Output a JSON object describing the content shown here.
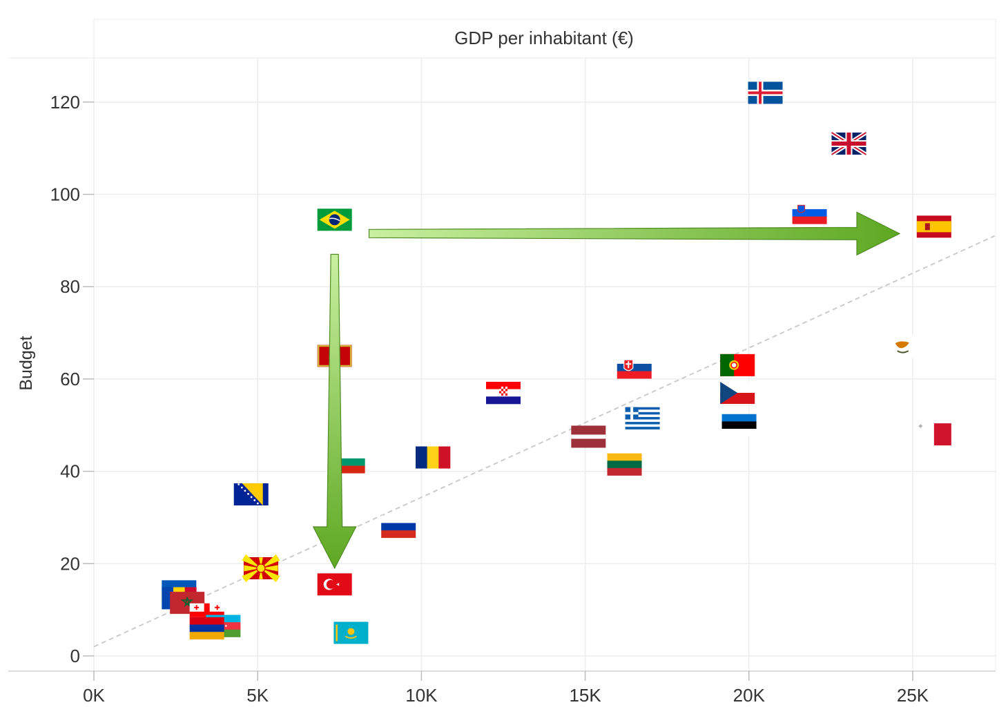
{
  "chart_data": {
    "type": "scatter",
    "title": "GDP per inhabitant (€)",
    "xlabel": "",
    "ylabel": "Budget",
    "xlim": [
      0,
      27500
    ],
    "ylim": [
      -3,
      130
    ],
    "x_ticks": [
      {
        "value": 0,
        "label": "0K"
      },
      {
        "value": 5000,
        "label": "5K"
      },
      {
        "value": 10000,
        "label": "10K"
      },
      {
        "value": 15000,
        "label": "15K"
      },
      {
        "value": 20000,
        "label": "20K"
      },
      {
        "value": 25000,
        "label": "25K"
      }
    ],
    "y_ticks": [
      {
        "value": 0,
        "label": "0"
      },
      {
        "value": 20,
        "label": "20"
      },
      {
        "value": 40,
        "label": "40"
      },
      {
        "value": 60,
        "label": "60"
      },
      {
        "value": 80,
        "label": "80"
      },
      {
        "value": 100,
        "label": "100"
      },
      {
        "value": 120,
        "label": "120"
      }
    ],
    "grid": true,
    "trend_line": {
      "style": "dashed",
      "color": "#cccccc",
      "from": [
        0,
        2
      ],
      "to": [
        27500,
        91
      ]
    },
    "points": [
      {
        "icon": "iceland-flag",
        "x": 20500,
        "y": 122
      },
      {
        "icon": "uk-flag",
        "x": 23050,
        "y": 111
      },
      {
        "icon": "slovenia-flag",
        "x": 21850,
        "y": 96
      },
      {
        "icon": "spain-flag",
        "x": 25650,
        "y": 93
      },
      {
        "icon": "brazil-flag",
        "x": 7350,
        "y": 94.5
      },
      {
        "icon": "cyprus-flag",
        "x": 24700,
        "y": 67
      },
      {
        "icon": "montenegro-flag",
        "x": 7350,
        "y": 65
      },
      {
        "icon": "slovakia-flag",
        "x": 16500,
        "y": 62.5
      },
      {
        "icon": "portugal-flag",
        "x": 19650,
        "y": 63
      },
      {
        "icon": "croatia-flag",
        "x": 12500,
        "y": 57
      },
      {
        "icon": "czechia-flag",
        "x": 19650,
        "y": 57
      },
      {
        "icon": "greece-flag",
        "x": 16750,
        "y": 51.5
      },
      {
        "icon": "estonia-flag",
        "x": 19700,
        "y": 50
      },
      {
        "icon": "latvia-flag",
        "x": 15100,
        "y": 47.5
      },
      {
        "icon": "malta-flag",
        "x": 25650,
        "y": 48
      },
      {
        "icon": "romania-flag",
        "x": 10350,
        "y": 43
      },
      {
        "icon": "lithuania-flag",
        "x": 16200,
        "y": 41.5
      },
      {
        "icon": "bulgaria-flag",
        "x": 7750,
        "y": 42
      },
      {
        "icon": "bosnia-flag",
        "x": 4800,
        "y": 35
      },
      {
        "icon": "russia-flag",
        "x": 9300,
        "y": 28
      },
      {
        "icon": "north-macedonia-flag",
        "x": 5100,
        "y": 19
      },
      {
        "icon": "turkey-flag",
        "x": 7350,
        "y": 15.5
      },
      {
        "icon": "ukraine-flag",
        "x": 2600,
        "y": 14
      },
      {
        "icon": "moldova-flag",
        "x": 2600,
        "y": 12.5
      },
      {
        "icon": "morocco-flag",
        "x": 2850,
        "y": 11.5
      },
      {
        "icon": "georgia-flag",
        "x": 3450,
        "y": 9
      },
      {
        "icon": "azerbaijan-flag",
        "x": 3950,
        "y": 6.5
      },
      {
        "icon": "armenia-flag",
        "x": 3450,
        "y": 6
      },
      {
        "icon": "kazakhstan-flag",
        "x": 7850,
        "y": 5
      }
    ],
    "annotations": [
      {
        "type": "arrow",
        "color": "#6aaa2a",
        "from": [
          8400,
          91.5
        ],
        "to": [
          24600,
          91.5
        ]
      },
      {
        "type": "arrow",
        "color": "#6aaa2a",
        "from": [
          7350,
          87
        ],
        "to": [
          7350,
          19
        ]
      }
    ]
  }
}
